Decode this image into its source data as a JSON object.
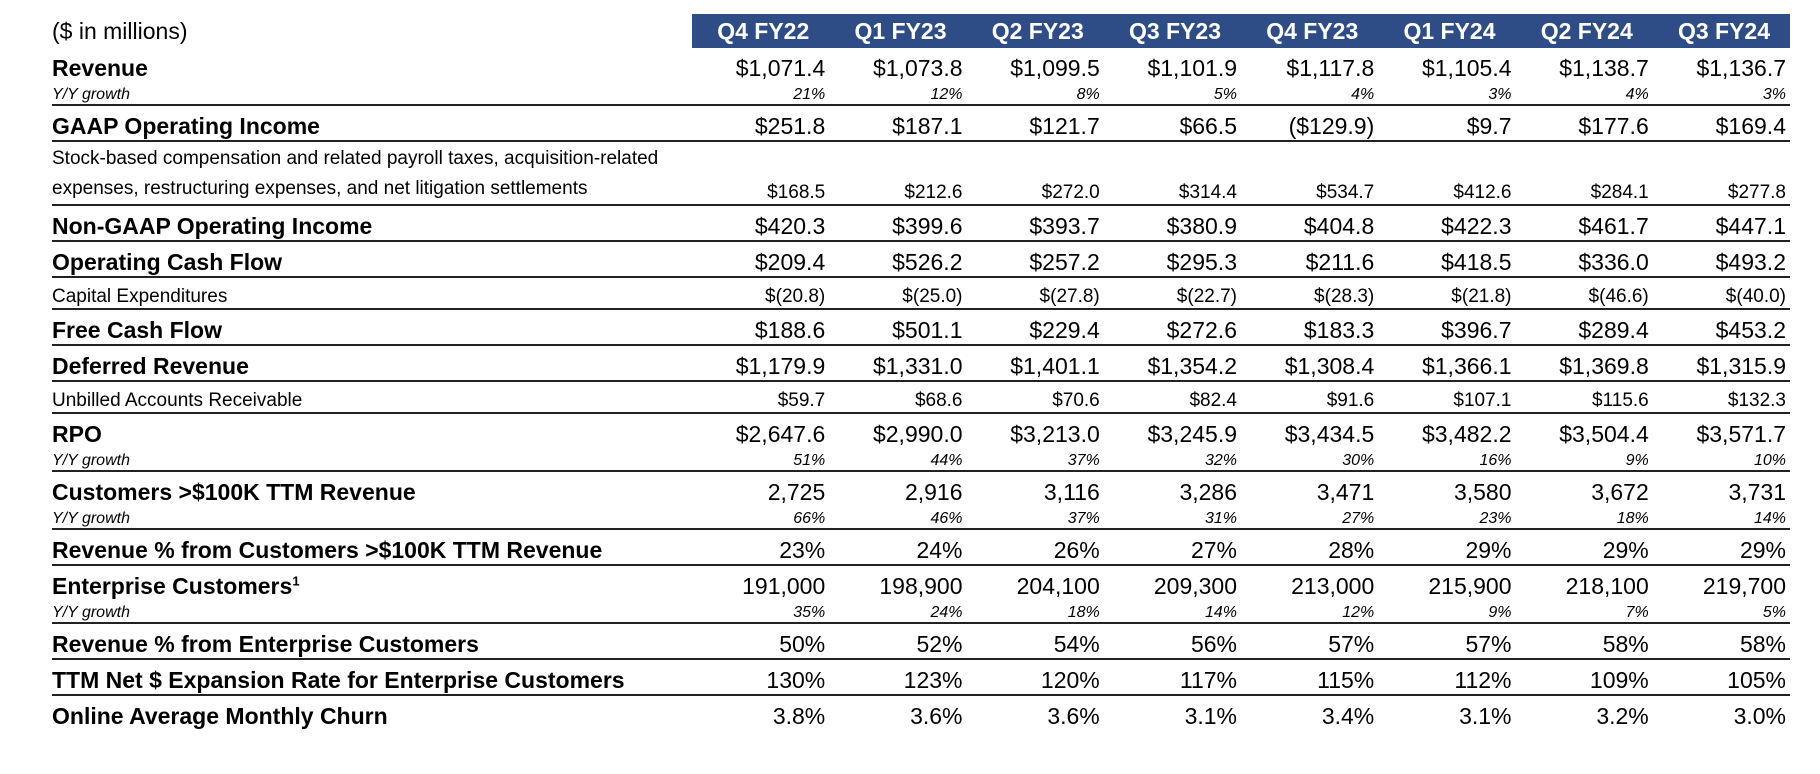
{
  "units_label": "($ in millions)",
  "quarters": [
    "Q4 FY22",
    "Q1 FY23",
    "Q2 FY23",
    "Q3 FY23",
    "Q4 FY23",
    "Q1 FY24",
    "Q2 FY24",
    "Q3 FY24"
  ],
  "rows": [
    {
      "label": "Revenue",
      "values": [
        "$1,071.4",
        "$1,073.8",
        "$1,099.5",
        "$1,101.9",
        "$1,117.8",
        "$1,105.4",
        "$1,138.7",
        "$1,136.7"
      ]
    },
    {
      "label": "Y/Y growth",
      "values": [
        "21%",
        "12%",
        "8%",
        "5%",
        "4%",
        "3%",
        "4%",
        "3%"
      ]
    },
    {
      "label": "GAAP Operating Income",
      "values": [
        "$251.8",
        "$187.1",
        "$121.7",
        "$66.5",
        "($129.9)",
        "$9.7",
        "$177.6",
        "$169.4"
      ]
    },
    {
      "label": "Stock-based compensation and related payroll taxes, acquisition-related expenses, restructuring expenses, and net litigation settlements",
      "values": [
        "$168.5",
        "$212.6",
        "$272.0",
        "$314.4",
        "$534.7",
        "$412.6",
        "$284.1",
        "$277.8"
      ]
    },
    {
      "label": "Non-GAAP Operating Income",
      "values": [
        "$420.3",
        "$399.6",
        "$393.7",
        "$380.9",
        "$404.8",
        "$422.3",
        "$461.7",
        "$447.1"
      ]
    },
    {
      "label": "Operating Cash Flow",
      "values": [
        "$209.4",
        "$526.2",
        "$257.2",
        "$295.3",
        "$211.6",
        "$418.5",
        "$336.0",
        "$493.2"
      ]
    },
    {
      "label": "Capital Expenditures",
      "values": [
        "$(20.8)",
        "$(25.0)",
        "$(27.8)",
        "$(22.7)",
        "$(28.3)",
        "$(21.8)",
        "$(46.6)",
        "$(40.0)"
      ]
    },
    {
      "label": "Free Cash Flow",
      "values": [
        "$188.6",
        "$501.1",
        "$229.4",
        "$272.6",
        "$183.3",
        "$396.7",
        "$289.4",
        "$453.2"
      ]
    },
    {
      "label": "Deferred Revenue",
      "values": [
        "$1,179.9",
        "$1,331.0",
        "$1,401.1",
        "$1,354.2",
        "$1,308.4",
        "$1,366.1",
        "$1,369.8",
        "$1,315.9"
      ]
    },
    {
      "label": "Unbilled Accounts Receivable",
      "values": [
        "$59.7",
        "$68.6",
        "$70.6",
        "$82.4",
        "$91.6",
        "$107.1",
        "$115.6",
        "$132.3"
      ]
    },
    {
      "label": "RPO",
      "values": [
        "$2,647.6",
        "$2,990.0",
        "$3,213.0",
        "$3,245.9",
        "$3,434.5",
        "$3,482.2",
        "$3,504.4",
        "$3,571.7"
      ]
    },
    {
      "label": "Y/Y growth",
      "values": [
        "51%",
        "44%",
        "37%",
        "32%",
        "30%",
        "16%",
        "9%",
        "10%"
      ]
    },
    {
      "label": "Customers >$100K TTM Revenue",
      "values": [
        "2,725",
        "2,916",
        "3,116",
        "3,286",
        "3,471",
        "3,580",
        "3,672",
        "3,731"
      ]
    },
    {
      "label": "Y/Y growth",
      "values": [
        "66%",
        "46%",
        "37%",
        "31%",
        "27%",
        "23%",
        "18%",
        "14%"
      ]
    },
    {
      "label": "Revenue % from Customers >$100K TTM Revenue",
      "values": [
        "23%",
        "24%",
        "26%",
        "27%",
        "28%",
        "29%",
        "29%",
        "29%"
      ]
    },
    {
      "label": "Enterprise Customers",
      "footnote": "1",
      "values": [
        "191,000",
        "198,900",
        "204,100",
        "209,300",
        "213,000",
        "215,900",
        "218,100",
        "219,700"
      ]
    },
    {
      "label": "Y/Y growth",
      "values": [
        "35%",
        "24%",
        "18%",
        "14%",
        "12%",
        "9%",
        "7%",
        "5%"
      ]
    },
    {
      "label": "Revenue % from Enterprise Customers",
      "values": [
        "50%",
        "52%",
        "54%",
        "56%",
        "57%",
        "57%",
        "58%",
        "58%"
      ]
    },
    {
      "label": "TTM Net $ Expansion Rate for Enterprise Customers",
      "values": [
        "130%",
        "123%",
        "120%",
        "117%",
        "115%",
        "112%",
        "109%",
        "105%"
      ]
    },
    {
      "label": "Online Average Monthly Churn",
      "values": [
        "3.8%",
        "3.6%",
        "3.6%",
        "3.1%",
        "3.4%",
        "3.1%",
        "3.2%",
        "3.0%"
      ]
    }
  ]
}
